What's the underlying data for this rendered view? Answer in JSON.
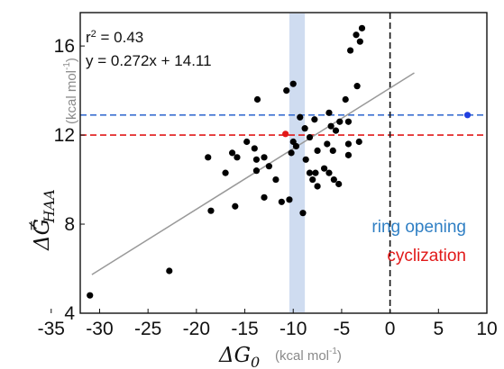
{
  "chart_data": {
    "type": "scatter",
    "xlabel_symbol": "ΔG",
    "xlabel_sub": "0",
    "xlabel_unit": "(kcal mol",
    "ylabel_symbol": "ΔG",
    "ylabel_sup": "≠",
    "ylabel_sub": "HAA",
    "ylabel_unit": "(kcal mol",
    "unit_exp": "-1",
    "unit_close": ")",
    "xlim": [
      -32,
      10
    ],
    "ylim": [
      4,
      17.5
    ],
    "xticks": [
      -35,
      -30,
      -25,
      -20,
      -15,
      -10,
      -5,
      0,
      5,
      10
    ],
    "yticks": [
      4,
      8,
      12,
      16
    ],
    "grid": false,
    "annotation_r2_prefix": "r",
    "annotation_r2_exp": "2",
    "annotation_r2_value": " = 0.43",
    "annotation_fit": "y = 0.272x + 14.11",
    "fit": {
      "slope": 0.272,
      "intercept": 14.11,
      "x_range": [
        -30.8,
        2.5
      ],
      "color": "#999999"
    },
    "band": {
      "x_range": [
        -10.4,
        -8.8
      ],
      "color": "#cfdcf0"
    },
    "vline": {
      "x": 0,
      "color": "#111111"
    },
    "hlines": [
      {
        "label": "ring opening",
        "y": 12.9,
        "color": "#3b6fd0"
      },
      {
        "label": "cyclization",
        "y": 12.0,
        "color": "#e11919"
      }
    ],
    "legend_colors": {
      "ring_opening": "#2f7fc4",
      "cyclization": "#e11919"
    },
    "special_points": [
      {
        "label": "ring opening",
        "x": 8.0,
        "y": 12.9,
        "color": "#1f3fe0"
      },
      {
        "label": "cyclization",
        "x": -10.8,
        "y": 12.05,
        "color": "#e11919"
      }
    ],
    "points": [
      {
        "x": -31.0,
        "y": 4.8
      },
      {
        "x": -22.8,
        "y": 5.9
      },
      {
        "x": -18.5,
        "y": 8.6
      },
      {
        "x": -16.0,
        "y": 8.8
      },
      {
        "x": -18.8,
        "y": 11.0
      },
      {
        "x": -16.3,
        "y": 11.2
      },
      {
        "x": -17.0,
        "y": 10.3
      },
      {
        "x": -15.8,
        "y": 11.0
      },
      {
        "x": -14.8,
        "y": 11.7
      },
      {
        "x": -14.0,
        "y": 11.4
      },
      {
        "x": -13.8,
        "y": 10.9
      },
      {
        "x": -13.0,
        "y": 11.0
      },
      {
        "x": -13.7,
        "y": 13.6
      },
      {
        "x": -13.8,
        "y": 10.4
      },
      {
        "x": -12.5,
        "y": 10.6
      },
      {
        "x": -13.0,
        "y": 9.2
      },
      {
        "x": -11.8,
        "y": 10.0
      },
      {
        "x": -11.2,
        "y": 9.0
      },
      {
        "x": -10.4,
        "y": 9.1
      },
      {
        "x": -10.7,
        "y": 14.0
      },
      {
        "x": -10.0,
        "y": 14.3
      },
      {
        "x": -10.0,
        "y": 11.7
      },
      {
        "x": -10.2,
        "y": 11.2
      },
      {
        "x": -9.7,
        "y": 11.5
      },
      {
        "x": -9.3,
        "y": 12.8
      },
      {
        "x": -8.8,
        "y": 12.3
      },
      {
        "x": -8.3,
        "y": 11.9
      },
      {
        "x": -7.8,
        "y": 12.7
      },
      {
        "x": -7.5,
        "y": 11.3
      },
      {
        "x": -8.7,
        "y": 10.9
      },
      {
        "x": -8.3,
        "y": 10.3
      },
      {
        "x": -8.0,
        "y": 10.0
      },
      {
        "x": -7.7,
        "y": 10.3
      },
      {
        "x": -7.5,
        "y": 9.7
      },
      {
        "x": -6.8,
        "y": 10.5
      },
      {
        "x": -6.3,
        "y": 10.3
      },
      {
        "x": -5.8,
        "y": 10.0
      },
      {
        "x": -5.3,
        "y": 9.8
      },
      {
        "x": -6.5,
        "y": 11.6
      },
      {
        "x": -5.9,
        "y": 11.3
      },
      {
        "x": -6.1,
        "y": 12.4
      },
      {
        "x": -5.6,
        "y": 12.2
      },
      {
        "x": -6.3,
        "y": 13.0
      },
      {
        "x": -5.2,
        "y": 12.6
      },
      {
        "x": -4.6,
        "y": 13.6
      },
      {
        "x": -4.3,
        "y": 12.6
      },
      {
        "x": -4.3,
        "y": 11.6
      },
      {
        "x": -4.3,
        "y": 11.1
      },
      {
        "x": -3.2,
        "y": 11.7
      },
      {
        "x": -3.4,
        "y": 14.2
      },
      {
        "x": -4.1,
        "y": 15.8
      },
      {
        "x": -3.1,
        "y": 16.2
      },
      {
        "x": -3.5,
        "y": 16.5
      },
      {
        "x": -2.9,
        "y": 16.8
      },
      {
        "x": -9.0,
        "y": 8.5
      }
    ]
  }
}
